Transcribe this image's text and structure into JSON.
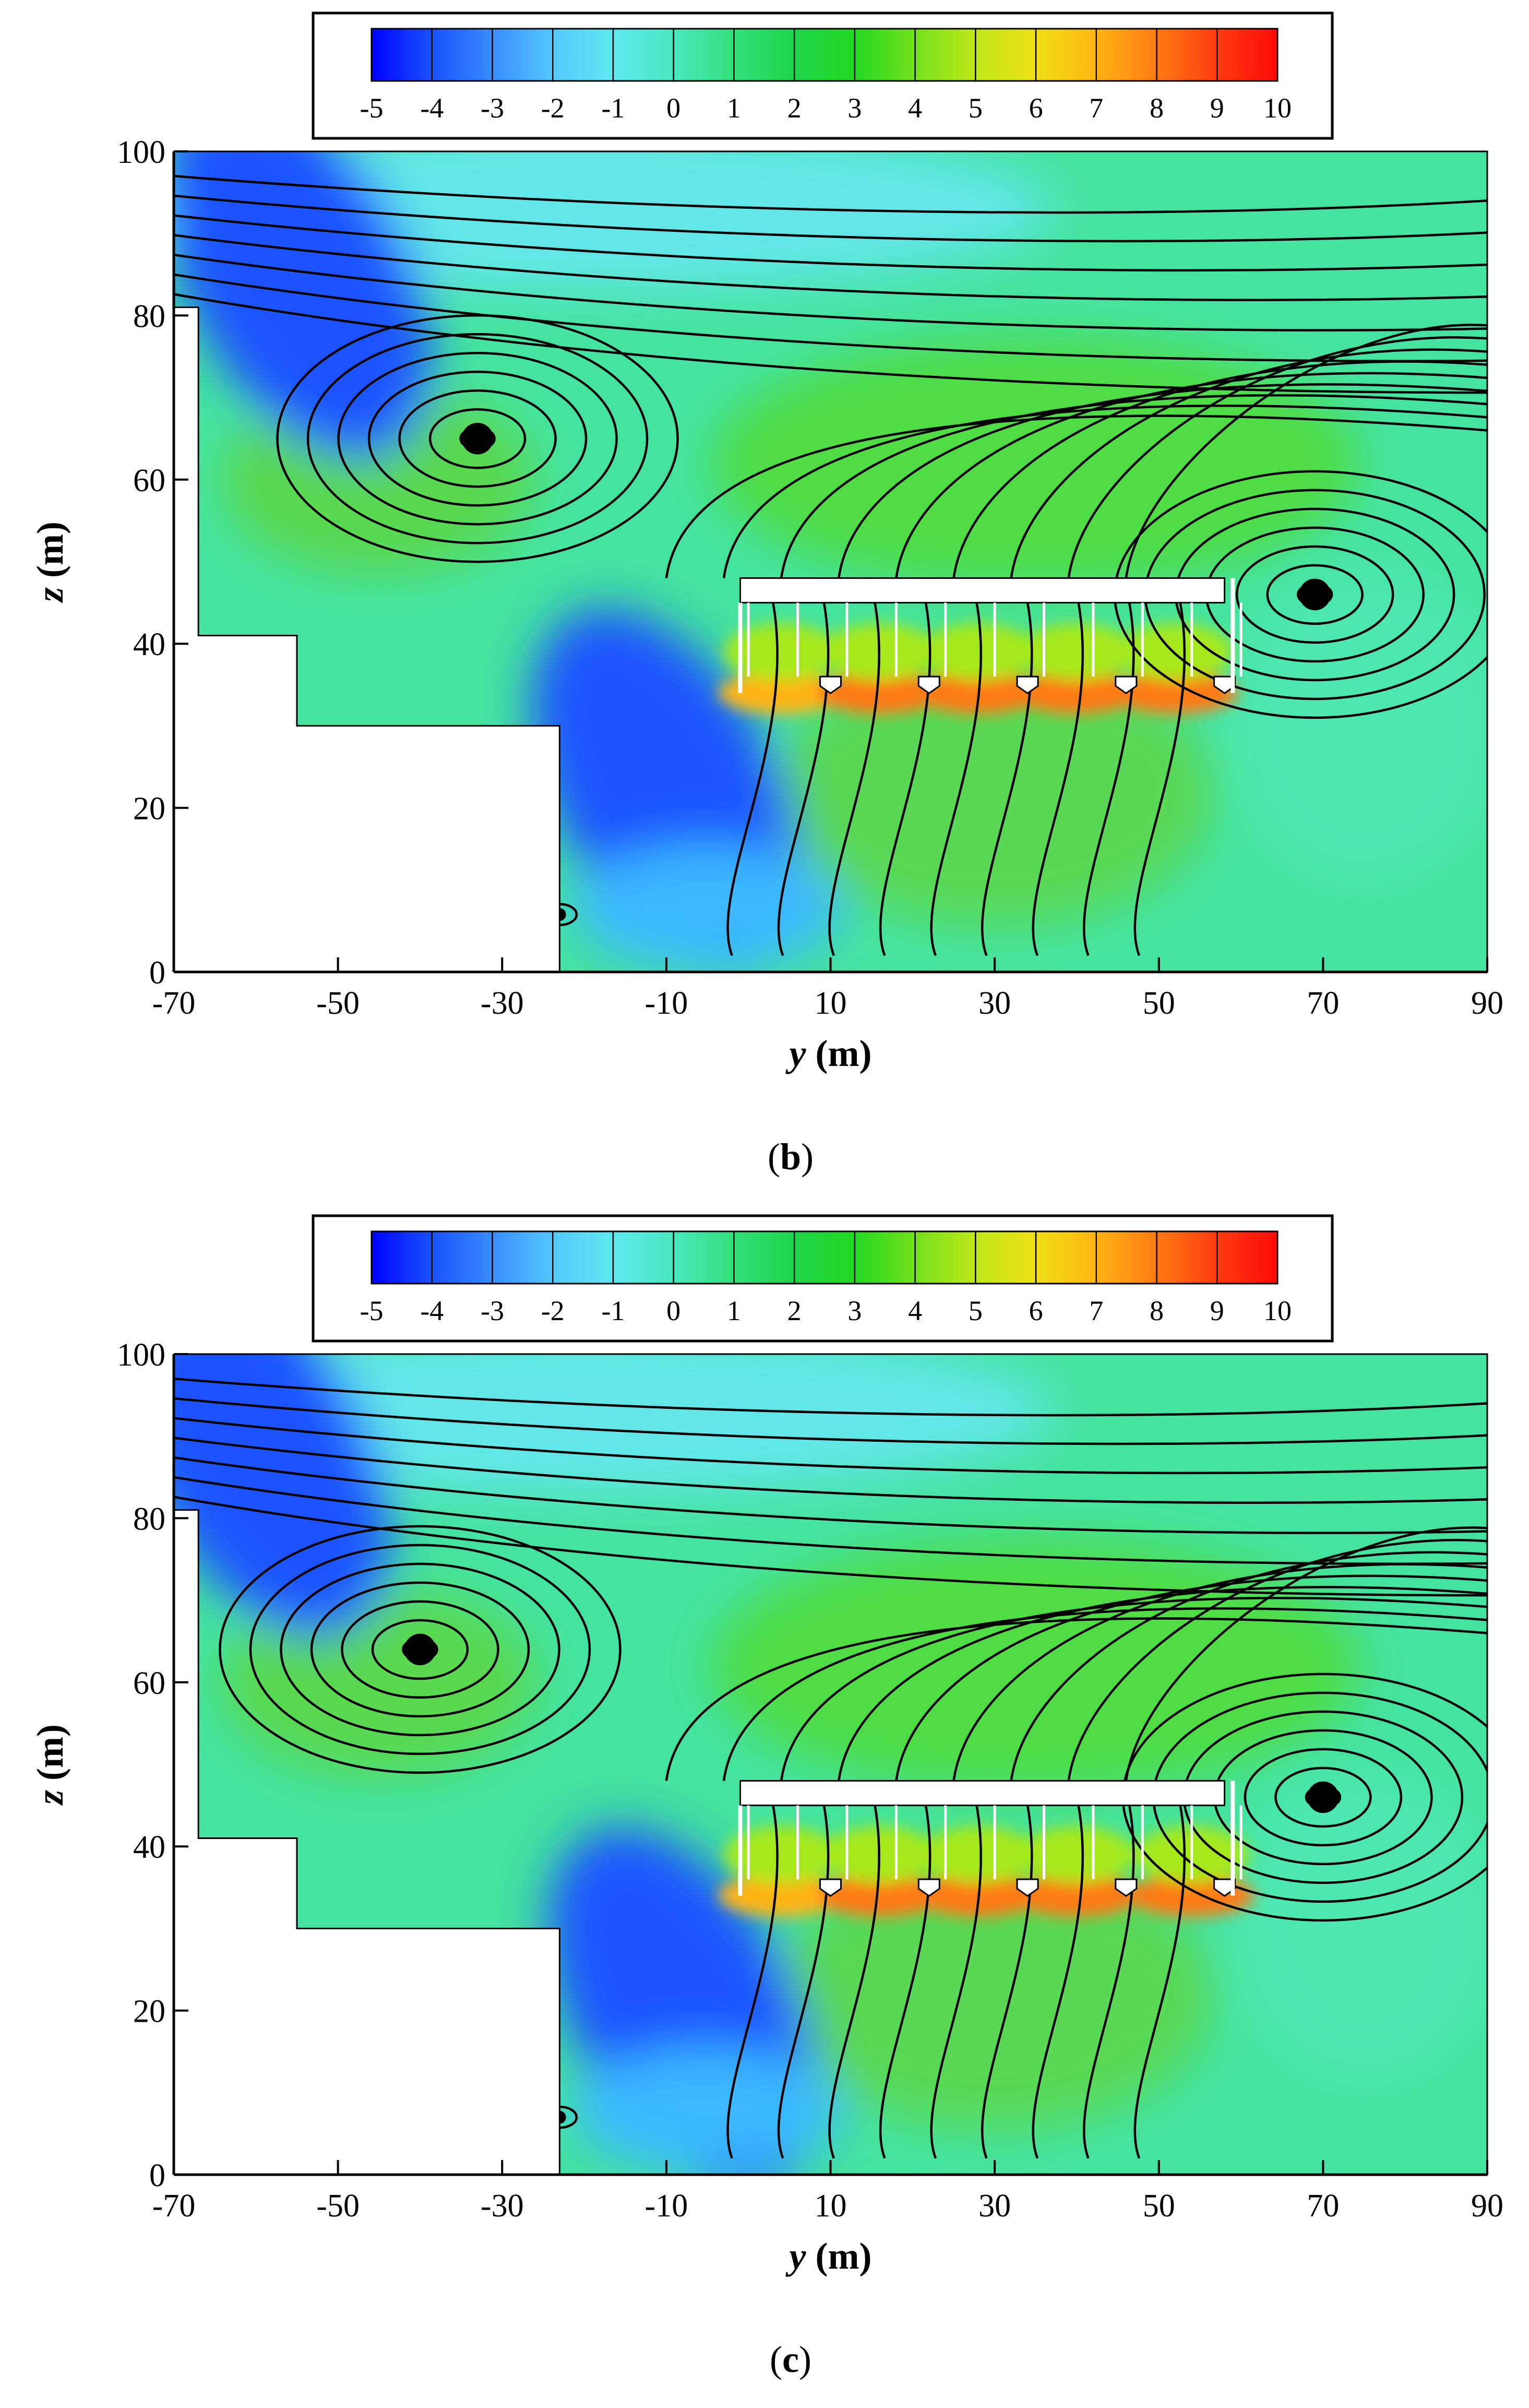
{
  "chart_data": [
    {
      "type": "heatmap",
      "panel_label": "(b)",
      "panel_letter": "b",
      "xlabel": "y (m)",
      "ylabel": "z (m)",
      "xlim": [
        -70,
        90
      ],
      "ylim": [
        0,
        100
      ],
      "x_ticks": [
        -70,
        -50,
        -30,
        -10,
        10,
        30,
        50,
        70,
        90
      ],
      "y_ticks": [
        0,
        20,
        40,
        60,
        80,
        100
      ],
      "colorbar": {
        "levels": [
          -5,
          -4,
          -3,
          -2,
          -1,
          0,
          1,
          2,
          3,
          4,
          5,
          6,
          7,
          8,
          9,
          10
        ],
        "labels": [
          "-5",
          "-4",
          "-3",
          "-2",
          "-1",
          "0",
          "1",
          "2",
          "3",
          "4",
          "5",
          "6",
          "7",
          "8",
          "9",
          "10"
        ],
        "colors": [
          "#0000ff",
          "#1a52ff",
          "#3a8cff",
          "#54c8ff",
          "#5fe8f0",
          "#48e8c0",
          "#33e07a",
          "#1ed44a",
          "#22d822",
          "#74e01c",
          "#bfe81a",
          "#f0e014",
          "#ffb414",
          "#ff7a14",
          "#ff3b10",
          "#ff0a0a"
        ]
      },
      "vortices": [
        {
          "y": -33,
          "z": 65
        },
        {
          "y": 69,
          "z": 46
        },
        {
          "y": -23,
          "z": 7
        }
      ],
      "low_regions": [
        {
          "y": -10,
          "z": 22,
          "value": -4
        },
        {
          "y": -55,
          "z": 85,
          "value": -4
        }
      ],
      "high_regions": [
        {
          "y": 0,
          "z": 34,
          "value": 7
        },
        {
          "y": 12,
          "z": 34,
          "value": 8
        },
        {
          "y": 24,
          "z": 34,
          "value": 8
        },
        {
          "y": 36,
          "z": 34,
          "value": 8
        },
        {
          "y": 48,
          "z": 34,
          "value": 8
        }
      ]
    },
    {
      "type": "heatmap",
      "panel_label": "(c)",
      "panel_letter": "c",
      "xlabel": "y (m)",
      "ylabel": "z (m)",
      "xlim": [
        -70,
        90
      ],
      "ylim": [
        0,
        100
      ],
      "x_ticks": [
        -70,
        -50,
        -30,
        -10,
        10,
        30,
        50,
        70,
        90
      ],
      "y_ticks": [
        0,
        20,
        40,
        60,
        80,
        100
      ],
      "colorbar": {
        "levels": [
          -5,
          -4,
          -3,
          -2,
          -1,
          0,
          1,
          2,
          3,
          4,
          5,
          6,
          7,
          8,
          9,
          10
        ],
        "labels": [
          "-5",
          "-4",
          "-3",
          "-2",
          "-1",
          "0",
          "1",
          "2",
          "3",
          "4",
          "5",
          "6",
          "7",
          "8",
          "9",
          "10"
        ],
        "colors": [
          "#0000ff",
          "#1a52ff",
          "#3a8cff",
          "#54c8ff",
          "#5fe8f0",
          "#48e8c0",
          "#33e07a",
          "#1ed44a",
          "#22d822",
          "#74e01c",
          "#bfe81a",
          "#f0e014",
          "#ffb414",
          "#ff7a14",
          "#ff3b10",
          "#ff0a0a"
        ]
      },
      "vortices": [
        {
          "y": -40,
          "z": 64
        },
        {
          "y": 70,
          "z": 46
        },
        {
          "y": -23,
          "z": 7
        }
      ],
      "low_regions": [
        {
          "y": -8,
          "z": 20,
          "value": -4
        },
        {
          "y": -60,
          "z": 88,
          "value": -4
        }
      ],
      "high_regions": [
        {
          "y": 0,
          "z": 34,
          "value": 7
        },
        {
          "y": 12,
          "z": 34,
          "value": 8
        },
        {
          "y": 24,
          "z": 34,
          "value": 8
        },
        {
          "y": 36,
          "z": 34,
          "value": 8
        },
        {
          "y": 50,
          "z": 34,
          "value": 8
        }
      ]
    }
  ]
}
